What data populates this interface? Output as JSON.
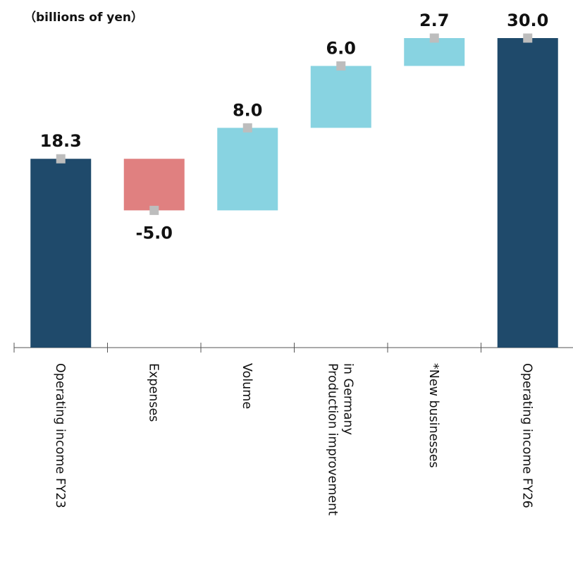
{
  "chart_data": {
    "type": "bar",
    "subtype": "waterfall",
    "unit_label": "（billions of yen）",
    "categories": [
      "Operating income FY23",
      "Expenses",
      "Volume",
      "Production improvement\nin Germany",
      "*New businesses",
      "Operating income FY26"
    ],
    "values": [
      18.3,
      -5.0,
      8.0,
      6.0,
      2.7,
      30.0
    ],
    "value_labels": [
      "18.3",
      "-5.0",
      "8.0",
      "6.0",
      "2.7",
      "30.0"
    ],
    "kinds": [
      "total",
      "delta",
      "delta",
      "delta",
      "delta",
      "total"
    ],
    "ylim": [
      0,
      30
    ],
    "grid": false,
    "legend": "none"
  },
  "colors": {
    "total": "#1f4a6b",
    "increase": "#88d3e1",
    "decrease": "#e08080",
    "marker": "#bdbdbd",
    "axis": "#555555"
  }
}
